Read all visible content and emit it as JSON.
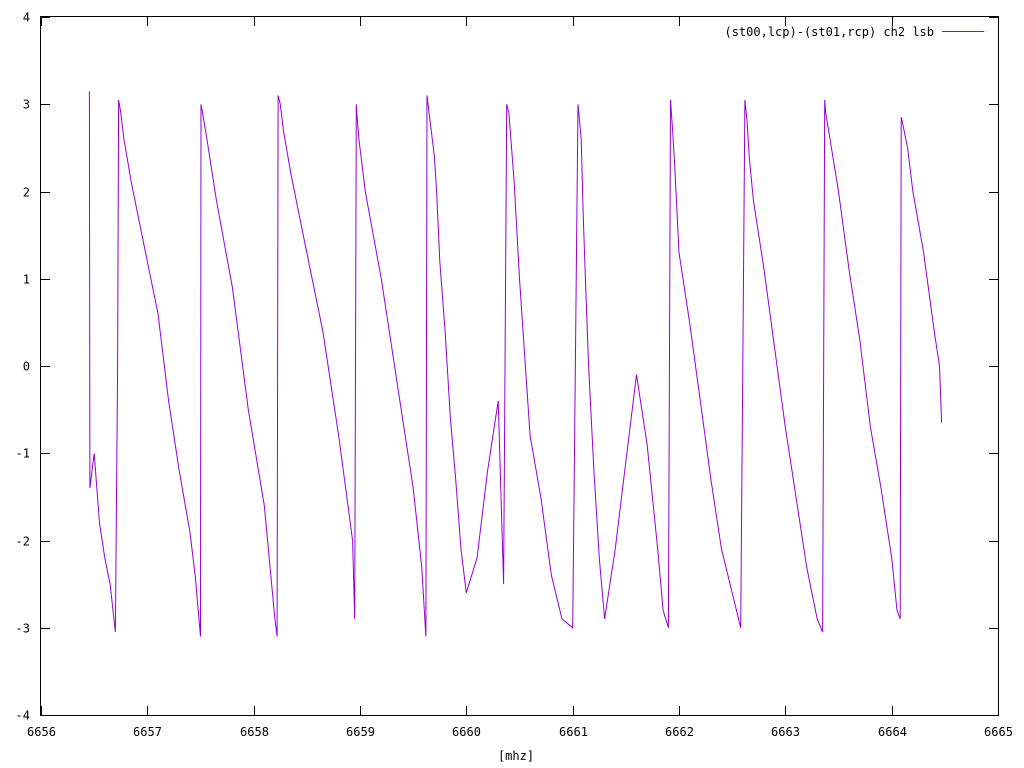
{
  "chart_data": {
    "type": "line",
    "title": "",
    "xlabel": "[mhz]",
    "ylabel": "",
    "xlim": [
      6656,
      6665
    ],
    "ylim": [
      -4,
      4
    ],
    "x_ticks": [
      6656,
      6657,
      6658,
      6659,
      6660,
      6661,
      6662,
      6663,
      6664,
      6665
    ],
    "y_ticks": [
      -4,
      -3,
      -2,
      -1,
      0,
      1,
      2,
      3,
      4
    ],
    "x_tick_labels": [
      "6656",
      "6657",
      "6658",
      "6659",
      "6660",
      "6661",
      "6662",
      "6663",
      "6664",
      "6665"
    ],
    "y_tick_labels": [
      "-4",
      "-3",
      "-2",
      "-1",
      "0",
      "1",
      "2",
      "3",
      "4"
    ],
    "grid": false,
    "legend_position": "top-right",
    "series": [
      {
        "name": "(st00,lcp)-(st01,rcp) ch2 lsb",
        "color": "#9400d3",
        "x": [
          6656.455,
          6656.46,
          6656.5,
          6656.55,
          6656.6,
          6656.65,
          6656.7,
          6656.72,
          6656.73,
          6656.75,
          6656.78,
          6656.85,
          6657.0,
          6657.1,
          6657.2,
          6657.3,
          6657.4,
          6657.45,
          6657.5,
          6657.505,
          6657.52,
          6657.56,
          6657.65,
          6657.8,
          6657.95,
          6658.1,
          6658.2,
          6658.22,
          6658.23,
          6658.25,
          6658.28,
          6658.35,
          6658.5,
          6658.65,
          6658.8,
          6658.93,
          6658.95,
          6658.965,
          6658.97,
          6658.99,
          6659.05,
          6659.2,
          6659.35,
          6659.5,
          6659.58,
          6659.62,
          6659.63,
          6659.65,
          6659.7,
          6659.72,
          6659.75,
          6659.8,
          6659.85,
          6659.9,
          6659.95,
          6660.0,
          6660.1,
          6660.2,
          6660.3,
          6660.35,
          6660.38,
          6660.4,
          6660.45,
          6660.5,
          6660.55,
          6660.6,
          6660.7,
          6660.8,
          6660.9,
          6661.0,
          6661.05,
          6661.08,
          6661.1,
          6661.12,
          6661.15,
          6661.2,
          6661.25,
          6661.3,
          6661.4,
          6661.5,
          6661.6,
          6661.7,
          6661.8,
          6661.85,
          6661.9,
          6661.92,
          6661.94,
          6661.96,
          6662.0,
          6662.1,
          6662.2,
          6662.3,
          6662.4,
          6662.5,
          6662.58,
          6662.62,
          6662.64,
          6662.66,
          6662.7,
          6662.8,
          6662.9,
          6663.0,
          6663.1,
          6663.2,
          6663.3,
          6663.35,
          6663.37,
          6663.38,
          6663.42,
          6663.5,
          6663.6,
          6663.7,
          6663.8,
          6663.9,
          6664.0,
          6664.05,
          6664.08,
          6664.09,
          6664.1,
          6664.15,
          6664.2,
          6664.3,
          6664.4,
          6664.45,
          6664.47
        ],
        "values": [
          3.15,
          -1.4,
          -1.0,
          -1.8,
          -2.2,
          -2.5,
          -3.05,
          0.0,
          3.05,
          2.9,
          2.6,
          2.1,
          1.2,
          0.6,
          -0.4,
          -1.2,
          -1.9,
          -2.4,
          -3.1,
          3.0,
          2.9,
          2.6,
          1.9,
          0.9,
          -0.5,
          -1.6,
          -2.9,
          -3.1,
          3.1,
          3.0,
          2.7,
          2.2,
          1.3,
          0.4,
          -0.8,
          -2.0,
          -2.9,
          3.0,
          2.9,
          2.6,
          2.0,
          1.0,
          -0.2,
          -1.4,
          -2.3,
          -3.1,
          3.1,
          2.9,
          2.4,
          2.0,
          1.2,
          0.4,
          -0.6,
          -1.3,
          -2.1,
          -2.6,
          -2.2,
          -1.2,
          -0.4,
          -2.5,
          3.0,
          2.9,
          2.1,
          1.0,
          0.1,
          -0.8,
          -1.5,
          -2.4,
          -2.9,
          -3.0,
          3.0,
          2.6,
          1.7,
          1.0,
          0.0,
          -1.2,
          -2.2,
          -2.9,
          -2.1,
          -1.1,
          -0.1,
          -0.9,
          -2.1,
          -2.8,
          -3.0,
          3.05,
          2.7,
          2.3,
          1.3,
          0.5,
          -0.4,
          -1.3,
          -2.1,
          -2.6,
          -3.0,
          3.05,
          2.8,
          2.4,
          1.9,
          1.1,
          0.2,
          -0.7,
          -1.5,
          -2.3,
          -2.9,
          -3.05,
          3.05,
          2.9,
          2.6,
          2.0,
          1.1,
          0.3,
          -0.7,
          -1.4,
          -2.2,
          -2.8,
          -2.9,
          2.85,
          2.8,
          2.5,
          2.0,
          1.3,
          0.4,
          0.0,
          -0.65
        ]
      }
    ]
  }
}
